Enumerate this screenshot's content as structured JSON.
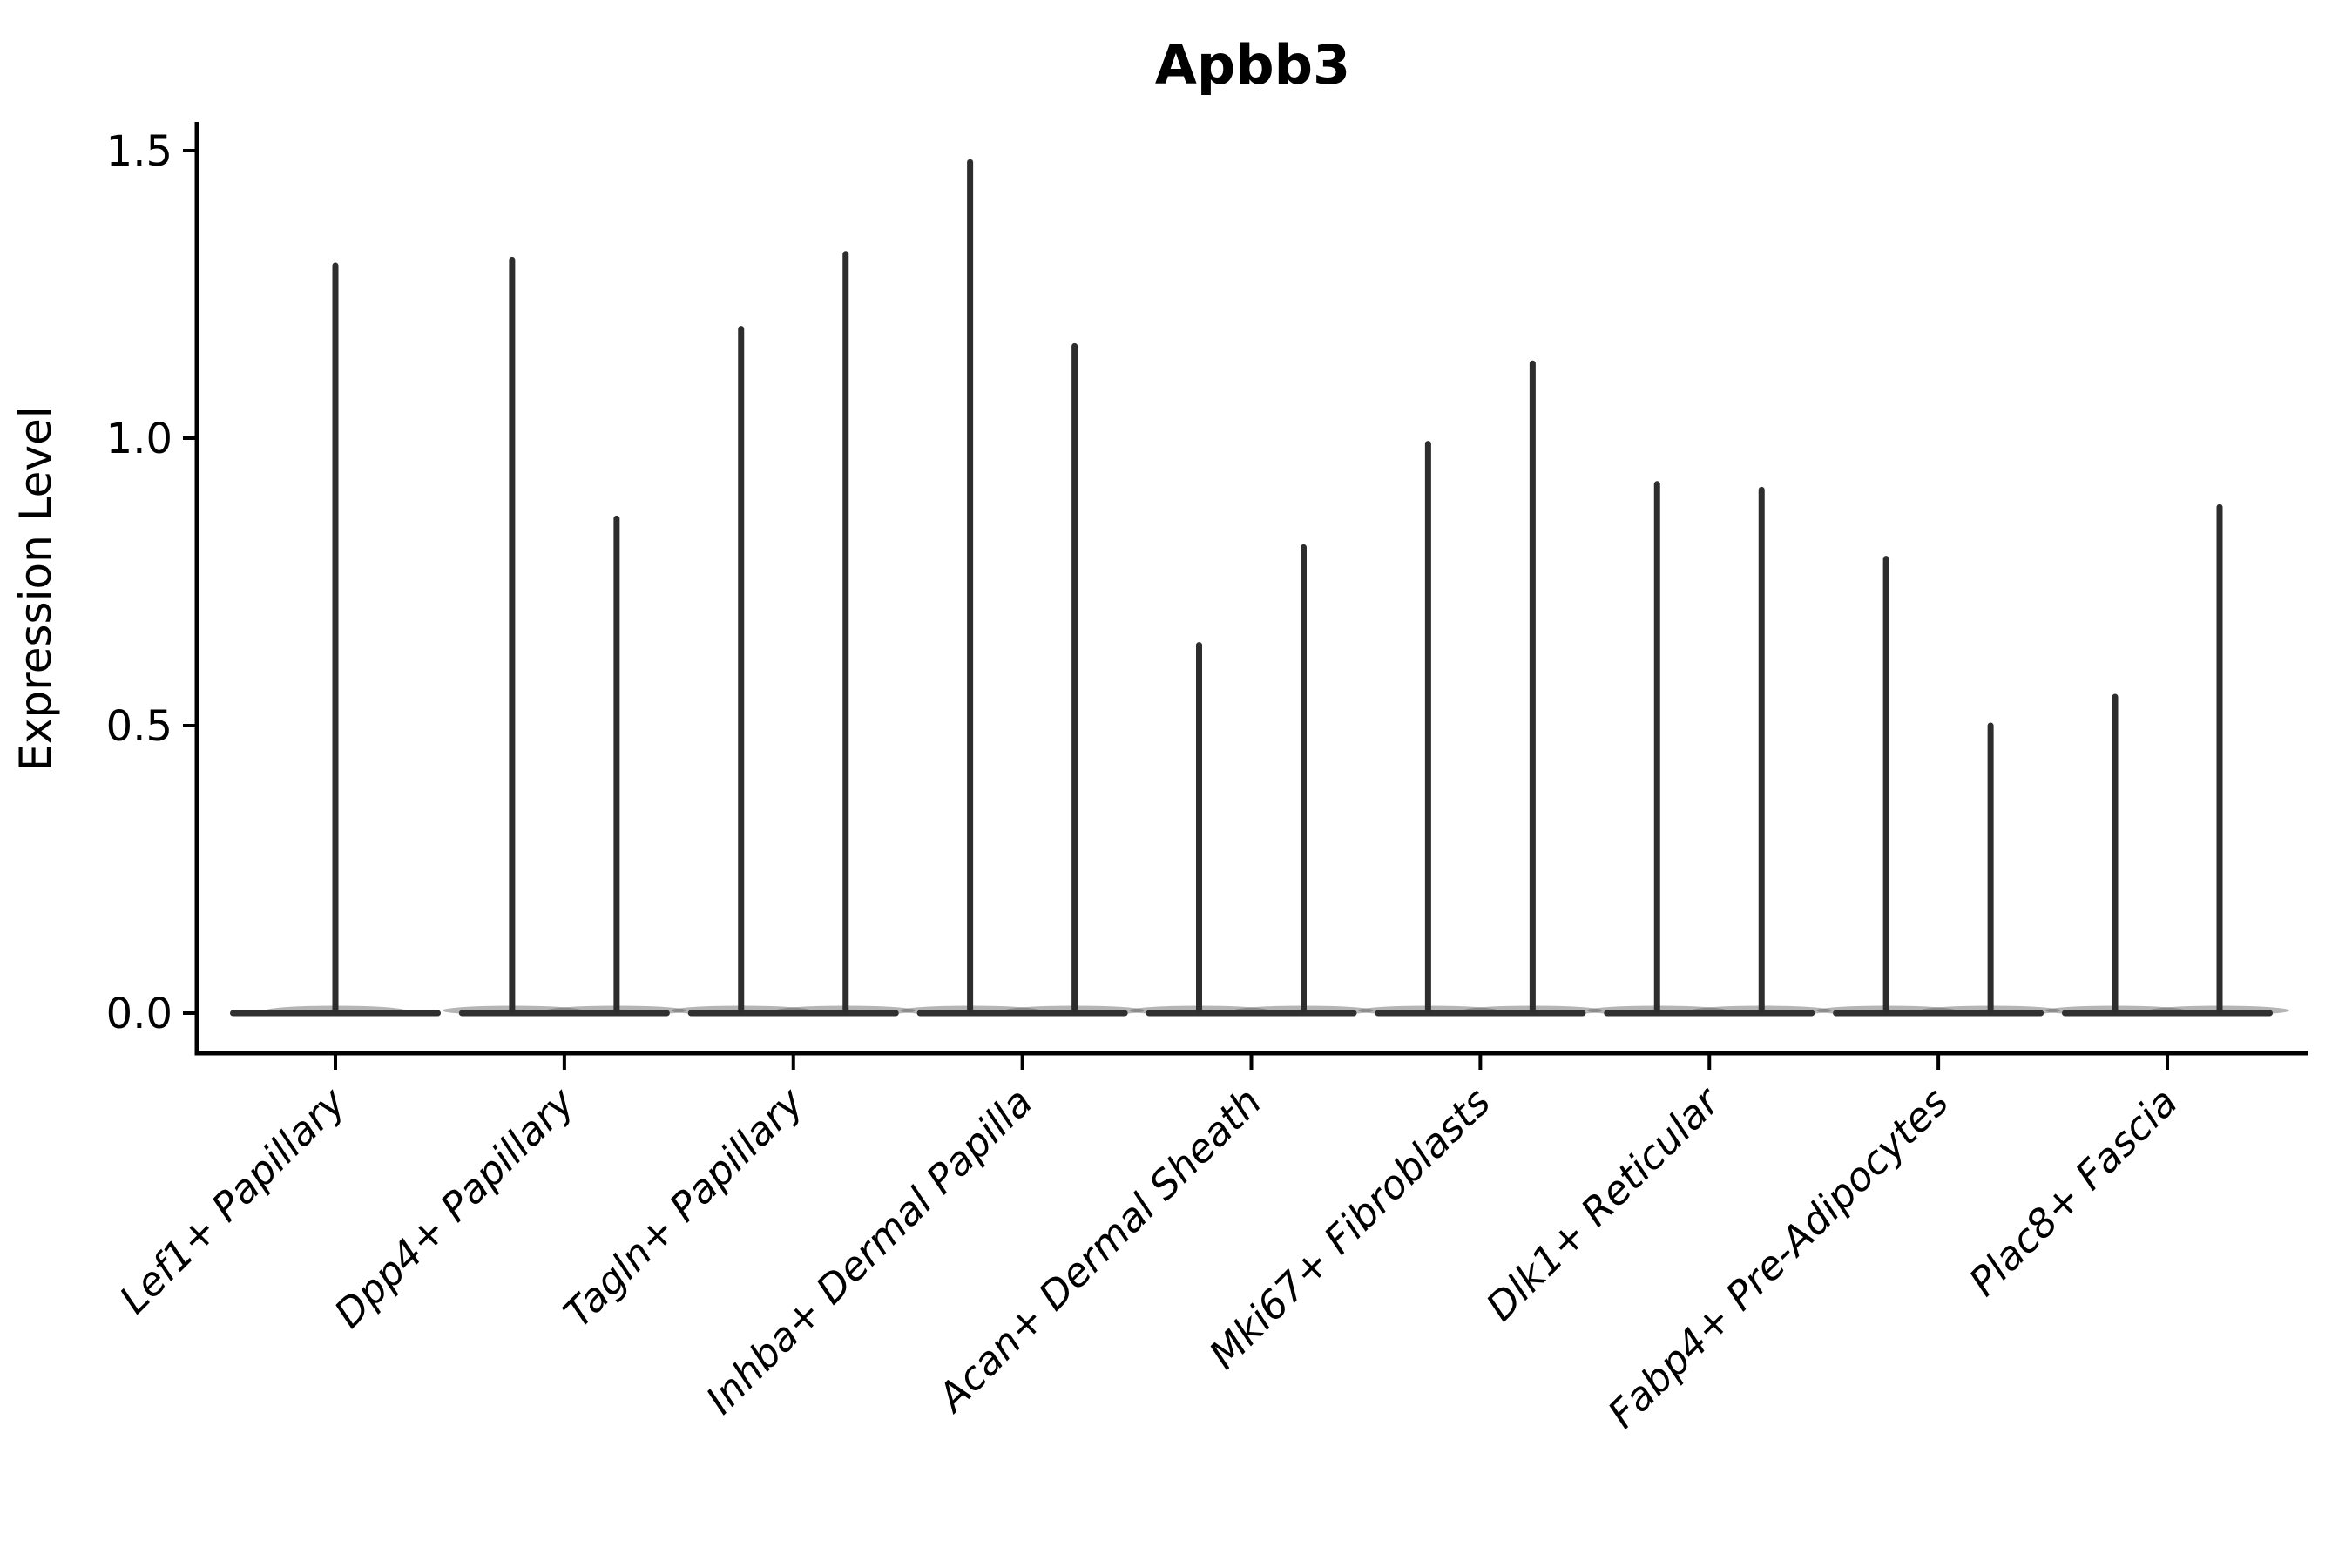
{
  "figure": {
    "title": "Apbb3",
    "ylabel": "Expression Level"
  },
  "chart_data": {
    "type": "violin",
    "title": "Apbb3",
    "xlabel": "",
    "ylabel": "Expression Level",
    "ylim": [
      -0.07,
      1.56
    ],
    "yticks": [
      0.0,
      0.5,
      1.0,
      1.5
    ],
    "ytick_labels": [
      "0.0",
      "0.5",
      "1.0",
      "1.5"
    ],
    "grid": false,
    "legend": "none",
    "categories": [
      "Lef1+ Papillary",
      "Dpp4+ Papillary",
      "Tagln+ Papillary",
      "Inhba+ Dermal Papilla",
      "Acan+ Dermal Sheath",
      "Mki67+ Fibroblasts",
      "Dlk1+ Reticular",
      "Fabp4+ Pre-Adipocytes",
      "Plac8+ Fascia"
    ],
    "series": [
      {
        "category": "Lef1+ Papillary",
        "violins": [
          {
            "position": "center",
            "min": 0,
            "max": 1.3
          }
        ]
      },
      {
        "category": "Dpp4+ Papillary",
        "violins": [
          {
            "position": "left",
            "min": 0,
            "max": 1.31
          },
          {
            "position": "right",
            "min": 0,
            "max": 0.86
          }
        ]
      },
      {
        "category": "Tagln+ Papillary",
        "violins": [
          {
            "position": "left",
            "min": 0,
            "max": 1.19
          },
          {
            "position": "right",
            "min": 0,
            "max": 1.32
          }
        ]
      },
      {
        "category": "Inhba+ Dermal Papilla",
        "violins": [
          {
            "position": "left",
            "min": 0,
            "max": 1.48
          },
          {
            "position": "right",
            "min": 0,
            "max": 1.16
          }
        ]
      },
      {
        "category": "Acan+ Dermal Sheath",
        "violins": [
          {
            "position": "left",
            "min": 0,
            "max": 0.64
          },
          {
            "position": "right",
            "min": 0,
            "max": 0.81
          }
        ]
      },
      {
        "category": "Mki67+ Fibroblasts",
        "violins": [
          {
            "position": "left",
            "min": 0,
            "max": 0.99
          },
          {
            "position": "right",
            "min": 0,
            "max": 1.13
          }
        ]
      },
      {
        "category": "Dlk1+ Reticular",
        "violins": [
          {
            "position": "left",
            "min": 0,
            "max": 0.92
          },
          {
            "position": "right",
            "min": 0,
            "max": 0.91
          }
        ]
      },
      {
        "category": "Fabp4+ Pre-Adipocytes",
        "violins": [
          {
            "position": "left",
            "min": 0,
            "max": 0.79
          },
          {
            "position": "right",
            "min": 0,
            "max": 0.5
          }
        ]
      },
      {
        "category": "Plac8+ Fascia",
        "violins": [
          {
            "position": "left",
            "min": 0,
            "max": 0.55
          },
          {
            "position": "right",
            "min": 0,
            "max": 0.88
          }
        ]
      }
    ],
    "colors": {
      "violin": "#2d2d2d",
      "violin_base": "#303030",
      "axis": "#000000",
      "background": "#ffffff"
    }
  }
}
